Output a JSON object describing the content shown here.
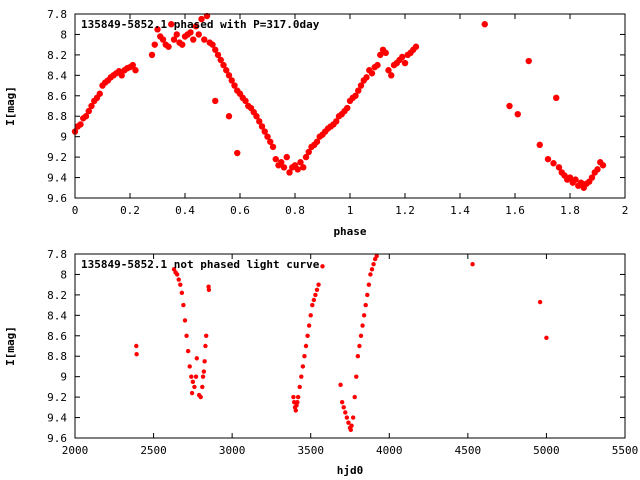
{
  "chart_data": [
    {
      "type": "scatter",
      "title": "135849-5852.1 phased with P=317.0day",
      "xlabel": "phase",
      "ylabel": "I[mag]",
      "xlim": [
        0,
        2
      ],
      "ylim": [
        9.6,
        7.8
      ],
      "y_inverted": true,
      "xticks": [
        0,
        0.2,
        0.4,
        0.6,
        0.8,
        1,
        1.2,
        1.4,
        1.6,
        1.8,
        2
      ],
      "xtick_labels": [
        "0",
        "0.2",
        "0.4",
        "0.6",
        "0.8",
        "1",
        "1.2",
        "1.4",
        "1.6",
        "1.8",
        "2"
      ],
      "yticks": [
        7.8,
        8,
        8.2,
        8.4,
        8.6,
        8.8,
        9,
        9.2,
        9.4,
        9.6
      ],
      "ytick_labels": [
        "7.8",
        "8",
        "8.2",
        "8.4",
        "8.6",
        "8.8",
        "9",
        "9.2",
        "9.4",
        "9.6"
      ],
      "grid": false,
      "marker_color": "#ff0000",
      "series": [
        {
          "values": [
            [
              0.0,
              8.95
            ],
            [
              0.01,
              8.9
            ],
            [
              0.02,
              8.88
            ],
            [
              0.03,
              8.82
            ],
            [
              0.04,
              8.8
            ],
            [
              0.05,
              8.75
            ],
            [
              0.06,
              8.7
            ],
            [
              0.07,
              8.65
            ],
            [
              0.08,
              8.62
            ],
            [
              0.09,
              8.58
            ],
            [
              0.1,
              8.5
            ],
            [
              0.11,
              8.47
            ],
            [
              0.12,
              8.45
            ],
            [
              0.13,
              8.42
            ],
            [
              0.14,
              8.4
            ],
            [
              0.15,
              8.38
            ],
            [
              0.16,
              8.36
            ],
            [
              0.17,
              8.4
            ],
            [
              0.18,
              8.35
            ],
            [
              0.19,
              8.33
            ],
            [
              0.2,
              8.32
            ],
            [
              0.21,
              8.3
            ],
            [
              0.22,
              8.35
            ],
            [
              0.28,
              8.2
            ],
            [
              0.29,
              8.1
            ],
            [
              0.3,
              7.95
            ],
            [
              0.31,
              8.02
            ],
            [
              0.32,
              8.05
            ],
            [
              0.33,
              8.1
            ],
            [
              0.34,
              8.12
            ],
            [
              0.35,
              7.9
            ],
            [
              0.36,
              8.05
            ],
            [
              0.37,
              8.0
            ],
            [
              0.38,
              8.08
            ],
            [
              0.39,
              8.1
            ],
            [
              0.4,
              8.02
            ],
            [
              0.41,
              8.0
            ],
            [
              0.42,
              7.98
            ],
            [
              0.43,
              8.05
            ],
            [
              0.44,
              7.92
            ],
            [
              0.45,
              8.0
            ],
            [
              0.46,
              7.85
            ],
            [
              0.47,
              8.05
            ],
            [
              0.48,
              7.82
            ],
            [
              0.49,
              8.08
            ],
            [
              0.5,
              8.1
            ],
            [
              0.51,
              8.15
            ],
            [
              0.52,
              8.2
            ],
            [
              0.53,
              8.25
            ],
            [
              0.54,
              8.3
            ],
            [
              0.55,
              8.35
            ],
            [
              0.56,
              8.4
            ],
            [
              0.57,
              8.45
            ],
            [
              0.58,
              8.5
            ],
            [
              0.59,
              8.55
            ],
            [
              0.6,
              8.58
            ],
            [
              0.61,
              8.62
            ],
            [
              0.62,
              8.65
            ],
            [
              0.63,
              8.7
            ],
            [
              0.64,
              8.72
            ],
            [
              0.65,
              8.76
            ],
            [
              0.66,
              8.8
            ],
            [
              0.67,
              8.85
            ],
            [
              0.68,
              8.9
            ],
            [
              0.69,
              8.95
            ],
            [
              0.7,
              9.0
            ],
            [
              0.71,
              9.05
            ],
            [
              0.72,
              9.1
            ],
            [
              0.73,
              9.22
            ],
            [
              0.74,
              9.28
            ],
            [
              0.75,
              9.25
            ],
            [
              0.76,
              9.3
            ],
            [
              0.77,
              9.2
            ],
            [
              0.78,
              9.35
            ],
            [
              0.79,
              9.3
            ],
            [
              0.8,
              9.28
            ],
            [
              0.81,
              9.32
            ],
            [
              0.82,
              9.25
            ],
            [
              0.83,
              9.3
            ],
            [
              0.84,
              9.2
            ],
            [
              0.85,
              9.15
            ],
            [
              0.86,
              9.1
            ],
            [
              0.87,
              9.08
            ],
            [
              0.88,
              9.05
            ],
            [
              0.89,
              9.0
            ],
            [
              0.9,
              8.98
            ],
            [
              0.91,
              8.95
            ],
            [
              0.92,
              8.92
            ],
            [
              0.93,
              8.9
            ],
            [
              0.94,
              8.88
            ],
            [
              0.95,
              8.85
            ],
            [
              0.96,
              8.8
            ],
            [
              0.97,
              8.78
            ],
            [
              0.98,
              8.75
            ],
            [
              0.99,
              8.72
            ],
            [
              1.0,
              8.65
            ],
            [
              1.01,
              8.62
            ],
            [
              1.02,
              8.6
            ],
            [
              1.03,
              8.55
            ],
            [
              1.04,
              8.5
            ],
            [
              1.05,
              8.45
            ],
            [
              1.06,
              8.42
            ],
            [
              1.07,
              8.35
            ],
            [
              1.08,
              8.38
            ],
            [
              1.09,
              8.32
            ],
            [
              1.1,
              8.3
            ],
            [
              1.11,
              8.2
            ],
            [
              1.12,
              8.15
            ],
            [
              1.13,
              8.18
            ],
            [
              1.14,
              8.35
            ],
            [
              1.15,
              8.4
            ],
            [
              1.16,
              8.3
            ],
            [
              1.17,
              8.28
            ],
            [
              1.18,
              8.25
            ],
            [
              1.19,
              8.22
            ],
            [
              1.2,
              8.28
            ],
            [
              1.21,
              8.2
            ],
            [
              1.22,
              8.18
            ],
            [
              1.23,
              8.15
            ],
            [
              1.24,
              8.12
            ],
            [
              0.51,
              8.65
            ],
            [
              0.56,
              8.8
            ],
            [
              0.59,
              9.16
            ],
            [
              1.49,
              7.9
            ],
            [
              1.58,
              8.7
            ],
            [
              1.61,
              8.78
            ],
            [
              1.65,
              8.26
            ],
            [
              1.69,
              9.08
            ],
            [
              1.72,
              9.22
            ],
            [
              1.74,
              9.26
            ],
            [
              1.75,
              8.62
            ],
            [
              1.76,
              9.3
            ],
            [
              1.77,
              9.35
            ],
            [
              1.78,
              9.38
            ],
            [
              1.79,
              9.42
            ],
            [
              1.8,
              9.4
            ],
            [
              1.81,
              9.45
            ],
            [
              1.82,
              9.42
            ],
            [
              1.83,
              9.48
            ],
            [
              1.84,
              9.45
            ],
            [
              1.85,
              9.5
            ],
            [
              1.86,
              9.46
            ],
            [
              1.87,
              9.44
            ],
            [
              1.88,
              9.4
            ],
            [
              1.89,
              9.35
            ],
            [
              1.9,
              9.32
            ],
            [
              1.91,
              9.25
            ],
            [
              1.92,
              9.28
            ]
          ]
        }
      ]
    },
    {
      "type": "scatter",
      "title": "135849-5852.1 not phased light curve",
      "xlabel": "hjd0",
      "ylabel": "I[mag]",
      "xlim": [
        2000,
        5500
      ],
      "ylim": [
        9.6,
        7.8
      ],
      "y_inverted": true,
      "xticks": [
        2000,
        2500,
        3000,
        3500,
        4000,
        4500,
        5000,
        5500
      ],
      "xtick_labels": [
        "2000",
        "2500",
        "3000",
        "3500",
        "4000",
        "4500",
        "5000",
        "5500"
      ],
      "yticks": [
        7.8,
        8,
        8.2,
        8.4,
        8.6,
        8.8,
        9,
        9.2,
        9.4,
        9.6
      ],
      "ytick_labels": [
        "7.8",
        "8",
        "8.2",
        "8.4",
        "8.6",
        "8.8",
        "9",
        "9.2",
        "9.4",
        "9.6"
      ],
      "grid": false,
      "marker_color": "#ff0000",
      "series": [
        {
          "values": [
            [
              2390,
              8.7
            ],
            [
              2392,
              8.78
            ],
            [
              2630,
              7.95
            ],
            [
              2640,
              7.98
            ],
            [
              2650,
              8.0
            ],
            [
              2660,
              8.05
            ],
            [
              2670,
              8.1
            ],
            [
              2680,
              8.18
            ],
            [
              2690,
              8.3
            ],
            [
              2700,
              8.45
            ],
            [
              2710,
              8.6
            ],
            [
              2720,
              8.75
            ],
            [
              2730,
              8.9
            ],
            [
              2740,
              9.0
            ],
            [
              2750,
              9.05
            ],
            [
              2760,
              9.1
            ],
            [
              2770,
              9.0
            ],
            [
              2775,
              8.82
            ],
            [
              2745,
              9.16
            ],
            [
              2790,
              9.18
            ],
            [
              2800,
              9.2
            ],
            [
              2810,
              9.1
            ],
            [
              2815,
              9.0
            ],
            [
              2820,
              8.95
            ],
            [
              2825,
              8.85
            ],
            [
              2830,
              8.7
            ],
            [
              2835,
              8.6
            ],
            [
              2850,
              8.12
            ],
            [
              2852,
              8.15
            ],
            [
              3390,
              9.2
            ],
            [
              3395,
              9.25
            ],
            [
              3400,
              9.3
            ],
            [
              3405,
              9.33
            ],
            [
              3410,
              9.28
            ],
            [
              3415,
              9.25
            ],
            [
              3420,
              9.2
            ],
            [
              3430,
              9.1
            ],
            [
              3440,
              9.0
            ],
            [
              3450,
              8.9
            ],
            [
              3460,
              8.8
            ],
            [
              3470,
              8.7
            ],
            [
              3480,
              8.6
            ],
            [
              3490,
              8.5
            ],
            [
              3500,
              8.4
            ],
            [
              3510,
              8.3
            ],
            [
              3520,
              8.25
            ],
            [
              3530,
              8.2
            ],
            [
              3540,
              8.15
            ],
            [
              3550,
              8.1
            ],
            [
              3575,
              7.92
            ],
            [
              3690,
              9.08
            ],
            [
              3700,
              9.25
            ],
            [
              3710,
              9.3
            ],
            [
              3720,
              9.35
            ],
            [
              3730,
              9.4
            ],
            [
              3740,
              9.45
            ],
            [
              3750,
              9.5
            ],
            [
              3755,
              9.52
            ],
            [
              3760,
              9.48
            ],
            [
              3770,
              9.4
            ],
            [
              3780,
              9.2
            ],
            [
              3790,
              9.0
            ],
            [
              3800,
              8.8
            ],
            [
              3810,
              8.7
            ],
            [
              3820,
              8.6
            ],
            [
              3830,
              8.5
            ],
            [
              3840,
              8.4
            ],
            [
              3850,
              8.3
            ],
            [
              3860,
              8.2
            ],
            [
              3870,
              8.1
            ],
            [
              3880,
              8.0
            ],
            [
              3890,
              7.95
            ],
            [
              3900,
              7.9
            ],
            [
              3910,
              7.85
            ],
            [
              3920,
              7.82
            ],
            [
              4530,
              7.9
            ],
            [
              4960,
              8.27
            ],
            [
              5000,
              8.62
            ]
          ]
        }
      ]
    }
  ]
}
